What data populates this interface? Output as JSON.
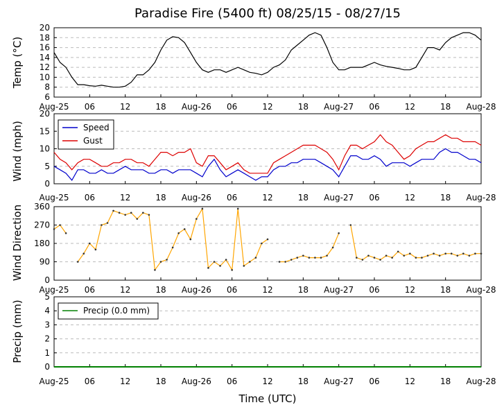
{
  "figure": {
    "title": "Paradise Fire (5400 ft) 08/25/15 - 08/27/15",
    "xlabel": "Time (UTC)"
  },
  "x_ticks": [
    "Aug-25",
    "06",
    "12",
    "18",
    "Aug-26",
    "06",
    "12",
    "18",
    "Aug-27",
    "06",
    "12",
    "18",
    "Aug-28"
  ],
  "chart_data": [
    {
      "type": "line",
      "ylabel": "Temp (°C)",
      "ylim": [
        6,
        20
      ],
      "yticks": [
        6,
        8,
        10,
        12,
        14,
        16,
        18,
        20
      ],
      "xlim": [
        0,
        72
      ],
      "x_unit": "hours since Aug-25 00 UTC",
      "grid": true,
      "series": [
        {
          "color": "#000000",
          "x": [
            0,
            1,
            2,
            3,
            4,
            5,
            6,
            7,
            8,
            9,
            10,
            11,
            12,
            13,
            14,
            15,
            16,
            17,
            18,
            19,
            20,
            21,
            22,
            23,
            24,
            25,
            26,
            27,
            28,
            29,
            30,
            31,
            32,
            33,
            34,
            35,
            36,
            37,
            38,
            39,
            40,
            41,
            42,
            43,
            44,
            45,
            46,
            47,
            48,
            49,
            50,
            51,
            52,
            53,
            54,
            55,
            56,
            57,
            58,
            59,
            60,
            61,
            62,
            63,
            64,
            65,
            66,
            67,
            68,
            69,
            70,
            71,
            72
          ],
          "values": [
            15,
            13,
            12,
            10,
            8.5,
            8.5,
            8.3,
            8.2,
            8.4,
            8.2,
            8,
            8,
            8.2,
            9,
            10.5,
            10.5,
            11.5,
            13,
            15.5,
            17.5,
            18.2,
            18,
            17,
            15,
            13,
            11.5,
            11,
            11.5,
            11.5,
            11,
            11.5,
            12,
            11.5,
            11,
            10.8,
            10.5,
            11,
            12,
            12.5,
            13.5,
            15.5,
            16.5,
            17.5,
            18.5,
            19,
            18.5,
            16,
            13,
            11.5,
            11.5,
            12,
            12,
            12,
            12.5,
            13,
            12.5,
            12.2,
            12,
            11.8,
            11.5,
            11.5,
            12,
            14,
            16,
            16,
            15.5,
            17,
            18,
            18.5,
            19,
            19,
            18.5,
            17.5
          ]
        }
      ]
    },
    {
      "type": "line",
      "ylabel": "Wind (mph)",
      "ylim": [
        0,
        20
      ],
      "yticks": [
        0,
        5,
        10,
        15,
        20
      ],
      "xlim": [
        0,
        72
      ],
      "x_unit": "hours since Aug-25 00 UTC",
      "grid": true,
      "legend_position": "top-left",
      "series": [
        {
          "name": "Speed",
          "color": "#0000cc",
          "x": [
            0,
            1,
            2,
            3,
            4,
            5,
            6,
            7,
            8,
            9,
            10,
            11,
            12,
            13,
            14,
            15,
            16,
            17,
            18,
            19,
            20,
            21,
            22,
            23,
            24,
            25,
            26,
            27,
            28,
            29,
            30,
            31,
            32,
            33,
            34,
            35,
            36,
            37,
            38,
            39,
            40,
            41,
            42,
            43,
            44,
            45,
            46,
            47,
            48,
            49,
            50,
            51,
            52,
            53,
            54,
            55,
            56,
            57,
            58,
            59,
            60,
            61,
            62,
            63,
            64,
            65,
            66,
            67,
            68,
            69,
            70,
            71,
            72
          ],
          "values": [
            5,
            4,
            3,
            1,
            4,
            4,
            3,
            3,
            4,
            3,
            3,
            4,
            5,
            4,
            4,
            4,
            3,
            3,
            4,
            4,
            3,
            4,
            4,
            4,
            3,
            2,
            5,
            7,
            4,
            2,
            3,
            4,
            3,
            2,
            1,
            2,
            2,
            4,
            5,
            5,
            6,
            6,
            7,
            7,
            7,
            6,
            5,
            4,
            2,
            5,
            8,
            8,
            7,
            7,
            8,
            7,
            5,
            6,
            6,
            6,
            5,
            6,
            7,
            7,
            7,
            9,
            10,
            9,
            9,
            8,
            7,
            7,
            6
          ]
        },
        {
          "name": "Gust",
          "color": "#dd0000",
          "x": [
            0,
            1,
            2,
            3,
            4,
            5,
            6,
            7,
            8,
            9,
            10,
            11,
            12,
            13,
            14,
            15,
            16,
            17,
            18,
            19,
            20,
            21,
            22,
            23,
            24,
            25,
            26,
            27,
            28,
            29,
            30,
            31,
            32,
            33,
            34,
            35,
            36,
            37,
            38,
            39,
            40,
            41,
            42,
            43,
            44,
            45,
            46,
            47,
            48,
            49,
            50,
            51,
            52,
            53,
            54,
            55,
            56,
            57,
            58,
            59,
            60,
            61,
            62,
            63,
            64,
            65,
            66,
            67,
            68,
            69,
            70,
            71,
            72
          ],
          "values": [
            9,
            7,
            6,
            4,
            6,
            7,
            7,
            6,
            5,
            5,
            6,
            6,
            7,
            7,
            6,
            6,
            5,
            7,
            9,
            9,
            8,
            9,
            9,
            10,
            6,
            5,
            8,
            8,
            6,
            4,
            5,
            6,
            4,
            3,
            3,
            3,
            3,
            6,
            7,
            8,
            9,
            10,
            11,
            11,
            11,
            10,
            9,
            7,
            4,
            8,
            11,
            11,
            10,
            11,
            12,
            14,
            12,
            11,
            9,
            7,
            8,
            10,
            11,
            12,
            12,
            13,
            14,
            13,
            13,
            12,
            12,
            12,
            11
          ]
        }
      ]
    },
    {
      "type": "line",
      "ylabel": "Wind Direction",
      "ylim": [
        0,
        360
      ],
      "yticks": [
        0,
        90,
        180,
        270,
        360
      ],
      "xlim": [
        0,
        72
      ],
      "x_unit": "hours since Aug-25 00 UTC",
      "grid": true,
      "series": [
        {
          "color": "#ffa500",
          "x": [
            0,
            1,
            2,
            3,
            4,
            5,
            6,
            7,
            8,
            9,
            10,
            11,
            12,
            13,
            14,
            15,
            16,
            17,
            18,
            19,
            20,
            21,
            22,
            23,
            24,
            25,
            26,
            27,
            28,
            29,
            30,
            31,
            32,
            33,
            34,
            35,
            36,
            37,
            38,
            39,
            40,
            41,
            42,
            43,
            44,
            45,
            46,
            47,
            48,
            49,
            50,
            51,
            52,
            53,
            54,
            55,
            56,
            57,
            58,
            59,
            60,
            61,
            62,
            63,
            64,
            65,
            66,
            67,
            68,
            69,
            70,
            71,
            72
          ],
          "values": [
            250,
            270,
            230,
            null,
            90,
            130,
            180,
            150,
            270,
            280,
            340,
            330,
            320,
            330,
            300,
            330,
            320,
            50,
            90,
            100,
            160,
            230,
            250,
            200,
            300,
            350,
            60,
            90,
            70,
            100,
            50,
            350,
            70,
            90,
            110,
            180,
            200,
            null,
            90,
            90,
            100,
            110,
            120,
            110,
            110,
            110,
            120,
            160,
            230,
            null,
            270,
            110,
            100,
            120,
            110,
            100,
            120,
            110,
            140,
            120,
            130,
            110,
            110,
            120,
            130,
            120,
            130,
            130,
            120,
            130,
            120,
            130,
            130
          ]
        }
      ]
    },
    {
      "type": "line",
      "ylabel": "Precip (mm)",
      "ylim": [
        0,
        5
      ],
      "yticks": [
        0,
        1,
        2,
        3,
        4,
        5
      ],
      "xlim": [
        0,
        72
      ],
      "x_unit": "hours since Aug-25 00 UTC",
      "grid": true,
      "legend_position": "top-left",
      "series": [
        {
          "name": "Precip (0.0 mm)",
          "color": "#008000",
          "x": [
            0,
            72
          ],
          "values": [
            0,
            0
          ]
        }
      ]
    }
  ]
}
